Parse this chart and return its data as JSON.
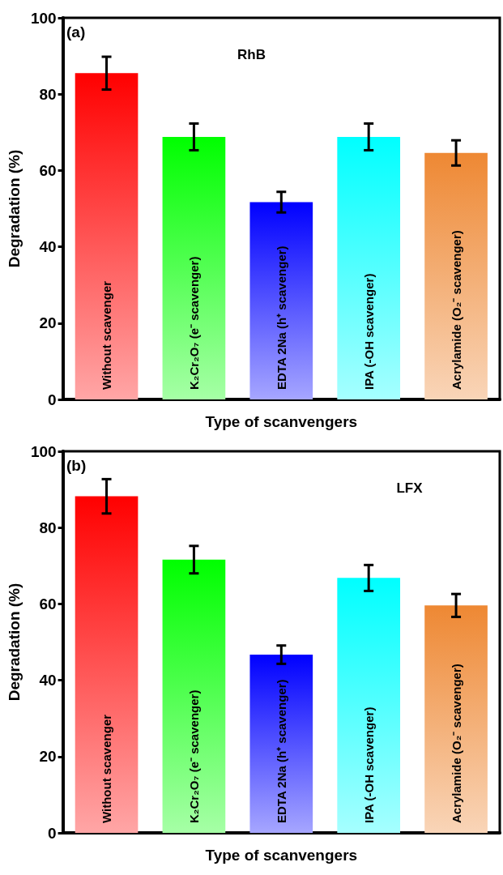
{
  "chart_data": [
    {
      "type": "bar",
      "title": "RhB",
      "annotations": [
        "(a)"
      ],
      "xlabel": "Type of scanvengers",
      "ylabel": "Degradation (%)",
      "categories": [
        "Without scavenger",
        "K₂Cr₂O₇ (e⁻ scavenger)",
        "EDTA 2Na (h⁺ scavenger)",
        "IPA (-OH scavenger)",
        "Acrylamide (O₂⁻ scavenger)"
      ],
      "values": [
        85.5,
        68.8,
        51.7,
        68.8,
        64.6
      ],
      "errors": [
        4.3,
        3.5,
        2.7,
        3.5,
        3.3
      ],
      "colors": [
        "#ff0000",
        "#00ff00",
        "#0000ff",
        "#00ffff",
        "#ee8833"
      ],
      "ylim": [
        0,
        100
      ],
      "yticks": [
        0,
        20,
        40,
        60,
        80,
        100
      ],
      "grid": false,
      "tick_labels": "y"
    },
    {
      "type": "bar",
      "title": "LFX",
      "annotations": [
        "(b)"
      ],
      "xlabel": "Type of scanvengers",
      "ylabel": "Degradation (%)",
      "categories": [
        "Without scavenger",
        "K₂Cr₂O₇ (e⁻ scavenger)",
        "EDTA 2Na (h⁺ scavenger)",
        "IPA (-OH scavenger)",
        "Acrylamide (O₂⁻ scavenger)"
      ],
      "values": [
        88.2,
        71.6,
        46.7,
        66.8,
        59.6
      ],
      "errors": [
        4.5,
        3.6,
        2.4,
        3.4,
        3.0
      ],
      "colors": [
        "#ff0000",
        "#00ff00",
        "#0000ff",
        "#00ffff",
        "#ee8833"
      ],
      "ylim": [
        0,
        100
      ],
      "yticks": [
        0,
        20,
        40,
        60,
        80,
        100
      ],
      "grid": false,
      "tick_labels": "y"
    }
  ]
}
